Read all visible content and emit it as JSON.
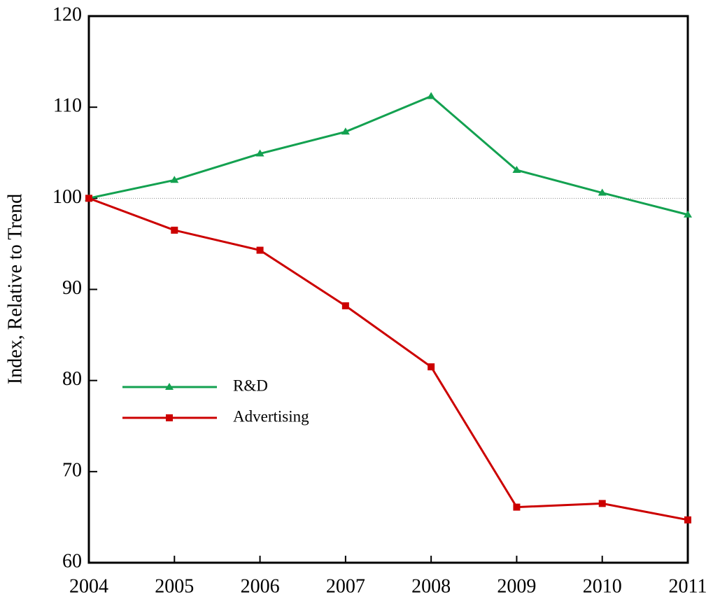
{
  "chart_data": {
    "type": "line",
    "y_label": "Index, Relative to Trend",
    "x": [
      2004,
      2005,
      2006,
      2007,
      2008,
      2009,
      2010,
      2011
    ],
    "series": [
      {
        "name": "R&D",
        "color": "#13a150",
        "marker": "triangle",
        "values": [
          100,
          102.0,
          104.9,
          107.3,
          111.2,
          103.1,
          100.6,
          98.2
        ]
      },
      {
        "name": "Advertising",
        "color": "#cc0000",
        "marker": "square",
        "values": [
          100,
          96.5,
          94.3,
          88.2,
          81.5,
          66.1,
          66.5,
          64.7
        ]
      }
    ],
    "xlim": [
      2004,
      2011
    ],
    "xticks": [
      2004,
      2005,
      2006,
      2007,
      2008,
      2009,
      2010,
      2011
    ],
    "ylim": [
      60,
      120
    ],
    "yticks": [
      60,
      70,
      80,
      90,
      100,
      110,
      120
    ],
    "reference_y": 100,
    "grid": false,
    "legend": "center-left"
  }
}
